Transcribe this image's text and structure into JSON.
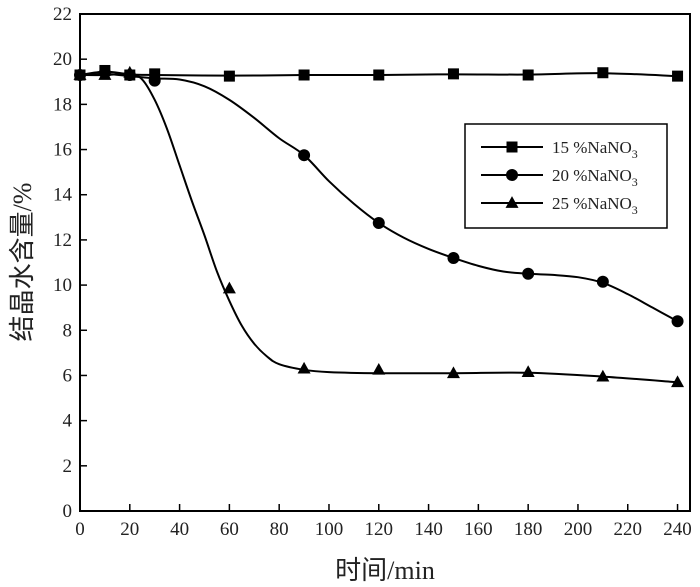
{
  "chart_data": {
    "type": "line",
    "title": "",
    "xlabel": "时间/min",
    "ylabel": "结晶水含量/%",
    "xlim": [
      0,
      245
    ],
    "ylim": [
      0,
      22
    ],
    "x_ticks": [
      0,
      20,
      40,
      60,
      80,
      100,
      120,
      140,
      160,
      180,
      200,
      220,
      240
    ],
    "y_ticks": [
      0,
      2,
      4,
      6,
      8,
      10,
      12,
      14,
      16,
      18,
      20,
      22
    ],
    "grid": false,
    "legend_position": "right-middle",
    "series": [
      {
        "name": "15 %NaNO",
        "subscript": "3",
        "marker": "square",
        "points": [
          [
            0,
            19.3
          ],
          [
            10,
            19.5
          ],
          [
            20,
            19.3
          ],
          [
            30,
            19.35
          ],
          [
            60,
            19.25
          ],
          [
            90,
            19.3
          ],
          [
            120,
            19.3
          ],
          [
            150,
            19.35
          ],
          [
            180,
            19.3
          ],
          [
            210,
            19.4
          ],
          [
            240,
            19.25
          ]
        ]
      },
      {
        "name": "20 %NaNO",
        "subscript": "3",
        "marker": "circle",
        "points": [
          [
            0,
            19.3
          ],
          [
            10,
            19.4
          ],
          [
            20,
            19.3
          ],
          [
            30,
            19.05
          ],
          [
            90,
            15.75
          ],
          [
            120,
            12.75
          ],
          [
            150,
            11.2
          ],
          [
            180,
            10.5
          ],
          [
            210,
            10.15
          ],
          [
            240,
            8.4
          ]
        ]
      },
      {
        "name": "25 %NaNO",
        "subscript": "3",
        "marker": "triangle",
        "points": [
          [
            0,
            19.3
          ],
          [
            10,
            19.3
          ],
          [
            20,
            19.4
          ],
          [
            60,
            9.85
          ],
          [
            90,
            6.3
          ],
          [
            120,
            6.25
          ],
          [
            150,
            6.1
          ],
          [
            180,
            6.15
          ],
          [
            210,
            5.95
          ],
          [
            240,
            5.7
          ]
        ]
      }
    ],
    "curves": {
      "series_15": [
        [
          0,
          19.3
        ],
        [
          10,
          19.45
        ],
        [
          20,
          19.33
        ],
        [
          30,
          19.3
        ],
        [
          60,
          19.27
        ],
        [
          90,
          19.3
        ],
        [
          120,
          19.3
        ],
        [
          150,
          19.33
        ],
        [
          180,
          19.32
        ],
        [
          210,
          19.38
        ],
        [
          240,
          19.25
        ]
      ],
      "series_20": [
        [
          0,
          19.3
        ],
        [
          10,
          19.35
        ],
        [
          20,
          19.25
        ],
        [
          30,
          19.15
        ],
        [
          40,
          19.1
        ],
        [
          50,
          18.8
        ],
        [
          60,
          18.2
        ],
        [
          70,
          17.4
        ],
        [
          80,
          16.5
        ],
        [
          90,
          15.75
        ],
        [
          100,
          14.6
        ],
        [
          110,
          13.6
        ],
        [
          120,
          12.75
        ],
        [
          130,
          12.1
        ],
        [
          140,
          11.6
        ],
        [
          150,
          11.2
        ],
        [
          160,
          10.85
        ],
        [
          170,
          10.6
        ],
        [
          180,
          10.5
        ],
        [
          190,
          10.45
        ],
        [
          200,
          10.35
        ],
        [
          210,
          10.1
        ],
        [
          220,
          9.6
        ],
        [
          230,
          9.0
        ],
        [
          240,
          8.4
        ]
      ],
      "series_25": [
        [
          0,
          19.3
        ],
        [
          10,
          19.3
        ],
        [
          20,
          19.35
        ],
        [
          25,
          19.1
        ],
        [
          30,
          18.2
        ],
        [
          35,
          16.9
        ],
        [
          40,
          15.3
        ],
        [
          45,
          13.7
        ],
        [
          50,
          12.2
        ],
        [
          55,
          10.6
        ],
        [
          60,
          9.3
        ],
        [
          65,
          8.2
        ],
        [
          70,
          7.4
        ],
        [
          75,
          6.85
        ],
        [
          80,
          6.5
        ],
        [
          90,
          6.25
        ],
        [
          100,
          6.15
        ],
        [
          120,
          6.1
        ],
        [
          150,
          6.1
        ],
        [
          180,
          6.12
        ],
        [
          210,
          5.95
        ],
        [
          240,
          5.7
        ]
      ]
    }
  }
}
